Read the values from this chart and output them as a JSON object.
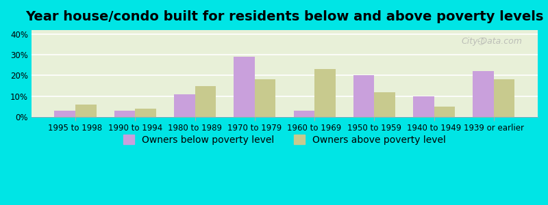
{
  "title": "Year house/condo built for residents below and above poverty levels",
  "categories": [
    "1995 to 1998",
    "1990 to 1994",
    "1980 to 1989",
    "1970 to 1979",
    "1960 to 1969",
    "1950 to 1959",
    "1940 to 1949",
    "1939 or earlier"
  ],
  "below_poverty": [
    3,
    3,
    11,
    29,
    3,
    20,
    10,
    22
  ],
  "above_poverty": [
    6,
    4,
    15,
    18,
    23,
    12,
    5,
    18
  ],
  "below_color": "#c9a0dc",
  "above_color": "#c8ca8e",
  "background_color": "#e8f0d8",
  "outer_background": "#00e5e5",
  "grid_color": "#ffffff",
  "yticks": [
    0,
    10,
    20,
    30,
    40
  ],
  "ylim": [
    0,
    42
  ],
  "bar_width": 0.35,
  "legend_below_label": "Owners below poverty level",
  "legend_above_label": "Owners above poverty level",
  "title_fontsize": 14,
  "tick_fontsize": 8.5,
  "legend_fontsize": 10
}
